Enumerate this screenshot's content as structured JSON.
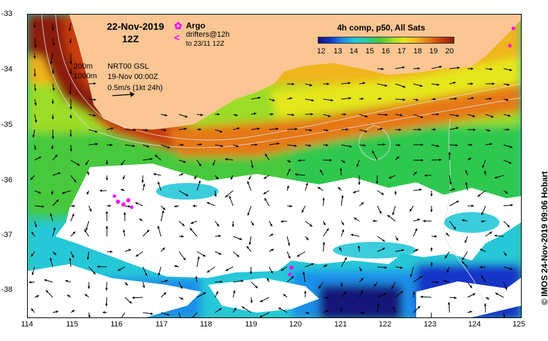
{
  "title": {
    "date": "22-Nov-2019",
    "hour": "12Z"
  },
  "legend": {
    "argo_label": "Argo",
    "drifters_label": "drifters@12h",
    "drifters_to": "to 23/11 12Z",
    "argo_color": "#ff00ff"
  },
  "contours": {
    "depth_a": "200m",
    "depth_b": "1000m"
  },
  "info": {
    "source": "NRT00 GSL",
    "time": "19-Nov 00:00Z",
    "scale": "0.5m/s (1kt 24h)"
  },
  "colorbar": {
    "title": "4h comp, p50, All Sats",
    "ticks": [
      "12",
      "13",
      "14",
      "15",
      "16",
      "17",
      "18",
      "19",
      "20"
    ],
    "min": 12,
    "max": 20
  },
  "axes": {
    "x_ticks": [
      "114",
      "115",
      "116",
      "117",
      "118",
      "119",
      "120",
      "121",
      "122",
      "123",
      "124",
      "125"
    ],
    "y_ticks": [
      "-33",
      "-34",
      "-35",
      "-36",
      "-37",
      "-38"
    ],
    "xlim": [
      114,
      125
    ],
    "ylim": [
      -38.5,
      -33
    ]
  },
  "credit": "© IMOS 24-Nov-2019 09:06 Hobart",
  "colors": {
    "land": "#fbc693",
    "cloud": "#ffffff",
    "argo": "#ff00ff"
  }
}
